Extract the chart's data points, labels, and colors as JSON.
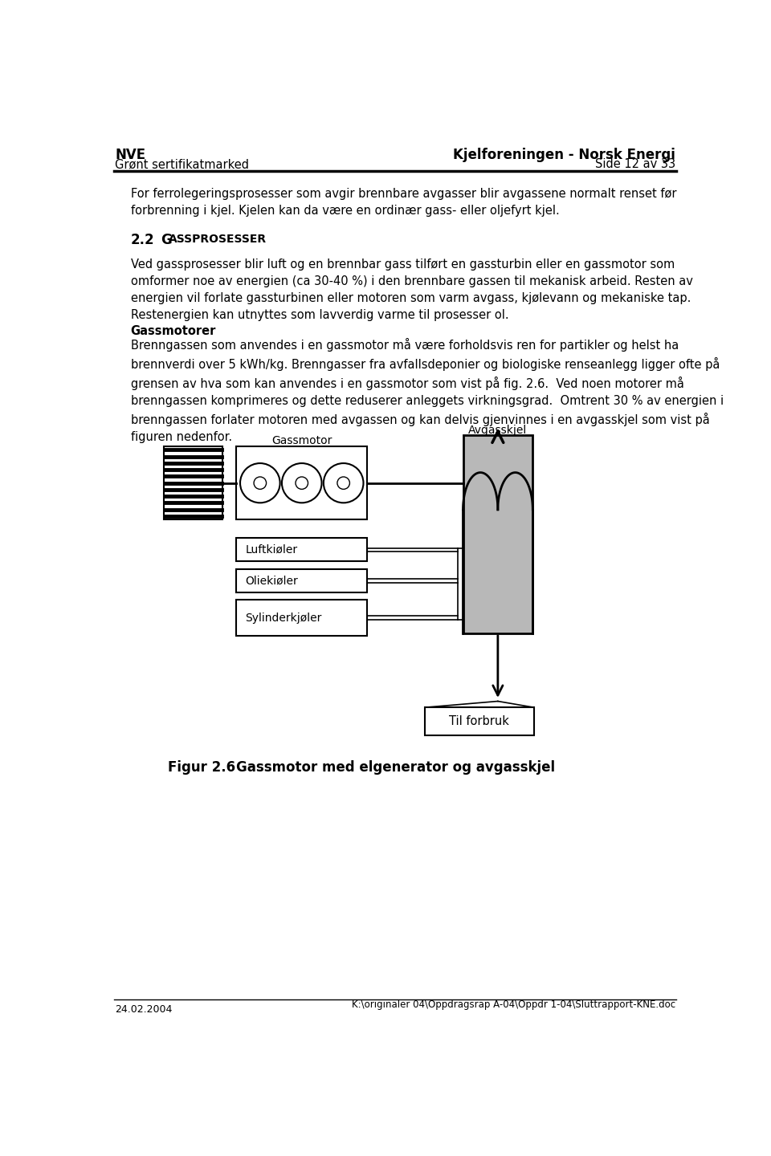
{
  "header_left_line1": "NVE",
  "header_left_line2": "Grønt sertifikatmarked",
  "header_right_line1": "Kjelforeningen - Norsk Energi",
  "header_right_line2": "Side 12 av 33",
  "footer_left": "24.02.2004",
  "footer_right": "K:\\originaler 04\\Oppdragsrap A-04\\Oppdr 1-04\\Sluttrapport-KNE.doc",
  "bg_color": "#ffffff",
  "text_color": "#000000",
  "diagram": {
    "gassmotor_label": "Gassmotor",
    "avgasskjel_label": "Avgasskjel",
    "luftkjoler_label": "Luftkiøler",
    "oliekjoler_label": "Oliekiøler",
    "sylinderkjoler_label": "Sylinderkjøler",
    "til_forbruk_label": "Til forbruk"
  },
  "figure_number": "Figur 2.6",
  "figure_caption": "Gassmotor med elgenerator og avgasskjel"
}
